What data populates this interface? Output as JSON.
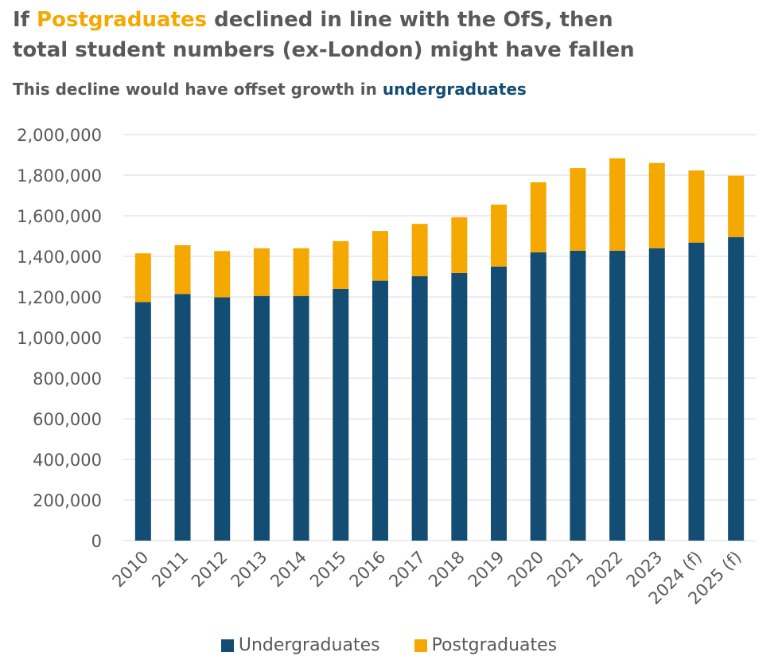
{
  "title": {
    "line1_prefix": "If ",
    "line1_highlight": "Postgraduates",
    "line1_suffix": " declined in line with the OfS, then",
    "line2": "total student numbers (ex-London) might have fallen"
  },
  "subtitle": {
    "prefix": "This decline would have offset growth in ",
    "highlight": "undergraduates"
  },
  "colors": {
    "undergraduates": "#134D73",
    "postgraduates": "#F5A800",
    "text": "#595959",
    "grid": "#D9D9D9"
  },
  "chart_data": {
    "type": "bar",
    "stacked": true,
    "categories": [
      "2010",
      "2011",
      "2012",
      "2013",
      "2014",
      "2015",
      "2016",
      "2017",
      "2018",
      "2019",
      "2020",
      "2021",
      "2022",
      "2023",
      "2024 (f)",
      "2025 (f)"
    ],
    "series": [
      {
        "name": "Undergraduates",
        "color": "#134D73",
        "values": [
          1175000,
          1215000,
          1198000,
          1205000,
          1205000,
          1240000,
          1280000,
          1302000,
          1318000,
          1350000,
          1420000,
          1428000,
          1428000,
          1440000,
          1468000,
          1495000
        ]
      },
      {
        "name": "Postgraduates",
        "color": "#F5A800",
        "values": [
          240000,
          240000,
          228000,
          235000,
          235000,
          235000,
          245000,
          258000,
          275000,
          305000,
          345000,
          407000,
          455000,
          420000,
          355000,
          302000
        ]
      }
    ],
    "ylim": [
      0,
      2000000
    ],
    "yticks": [
      0,
      200000,
      400000,
      600000,
      800000,
      1000000,
      1200000,
      1400000,
      1600000,
      1800000,
      2000000
    ],
    "ytick_labels": [
      "0",
      "200,000",
      "400,000",
      "600,000",
      "800,000",
      "1,000,000",
      "1,200,000",
      "1,400,000",
      "1,600,000",
      "1,800,000",
      "2,000,000"
    ],
    "grid": true,
    "legend": "bottom"
  }
}
